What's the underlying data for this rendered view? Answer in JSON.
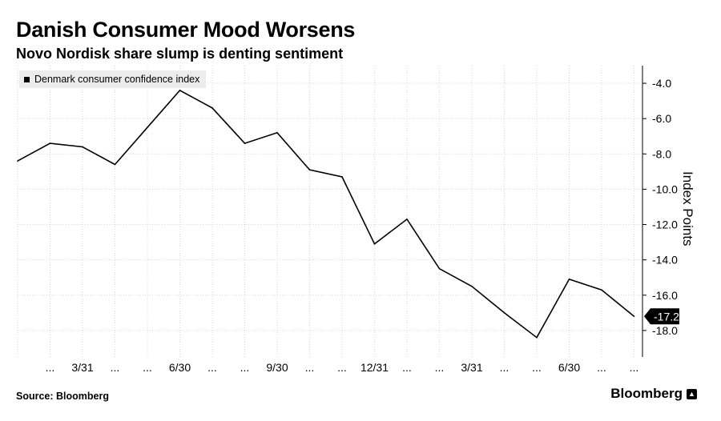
{
  "title": "Danish Consumer Mood Worsens",
  "subtitle": "Novo Nordisk share slump is denting sentiment",
  "footer": {
    "source": "Source: Bloomberg",
    "brand": "Bloomberg",
    "brand_mark": "▲"
  },
  "colors": {
    "line": "#000000",
    "grid": "#d9d9d9",
    "legend_bg": "#ececec",
    "callout_bg": "#000000",
    "callout_text": "#ffffff"
  },
  "chart_data": {
    "type": "line",
    "title": "Danish Consumer Mood Worsens",
    "subtitle": "Novo Nordisk share slump is denting sentiment",
    "ylabel": "Index Points",
    "y_axis_side": "right",
    "ylim": [
      -19.5,
      -3.0
    ],
    "yticks": [
      -4.0,
      -6.0,
      -8.0,
      -10.0,
      -12.0,
      -14.0,
      -16.0,
      -18.0
    ],
    "ytick_labels": [
      "-4.0",
      "-6.0",
      "-8.0",
      "-10.0",
      "-12.0",
      "-14.0",
      "-16.0",
      "-18.0"
    ],
    "grid": true,
    "legend_position": "top-left",
    "x_tick_labels": [
      "...",
      "3/31",
      "...",
      "...",
      "6/30",
      "...",
      "...",
      "9/30",
      "...",
      "...",
      "12/31",
      "...",
      "...",
      "3/31",
      "...",
      "...",
      "6/30",
      "...",
      "..."
    ],
    "series": [
      {
        "name": "Denmark consumer confidence index",
        "values": [
          -8.4,
          -7.4,
          -7.6,
          -8.6,
          -6.5,
          -4.4,
          -5.4,
          -7.4,
          -6.8,
          -8.9,
          -9.3,
          -13.1,
          -11.7,
          -14.5,
          -15.5,
          -17.0,
          -18.4,
          -15.1,
          -15.7,
          -17.2
        ]
      }
    ],
    "last_value_label": "-17.2"
  }
}
